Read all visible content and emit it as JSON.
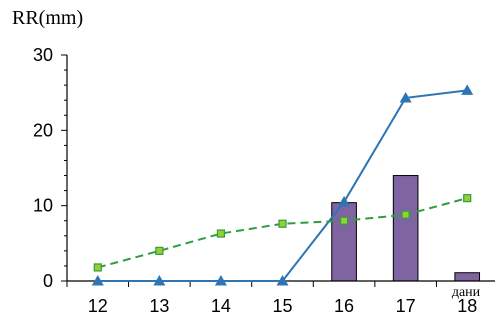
{
  "chart_data": {
    "type": "bar+line",
    "ylabel": "RR(mm)",
    "xlabel": "дани",
    "categories": [
      "12",
      "13",
      "14",
      "15",
      "16",
      "17",
      "18"
    ],
    "y_ticks": [
      "0",
      "10",
      "20",
      "30"
    ],
    "ylim": [
      0,
      30
    ],
    "grid": false,
    "legend": "none",
    "series": [
      {
        "type": "bar",
        "values": [
          0,
          0,
          0,
          0,
          10.4,
          14,
          1.1
        ],
        "color": "#8064a2",
        "stroke": "#000000"
      },
      {
        "type": "line",
        "marker": "triangle",
        "values": [
          0,
          0,
          0,
          0,
          10.5,
          24.3,
          25.3
        ],
        "color": "#2e75b6"
      },
      {
        "type": "line",
        "marker": "square",
        "dash": "dashed",
        "values": [
          1.8,
          4,
          6.3,
          7.6,
          8,
          8.8,
          11
        ],
        "color": "#2e9e43",
        "marker_color": "#9acd32"
      }
    ]
  }
}
